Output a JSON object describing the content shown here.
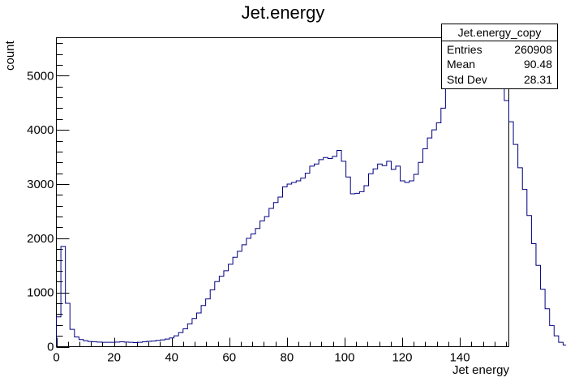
{
  "chart_data": {
    "type": "histogram",
    "title": "Jet.energy",
    "xlabel": "Jet energy",
    "ylabel": "count",
    "xlim": [
      0,
      157
    ],
    "ylim": [
      0,
      5700
    ],
    "xticks": [
      0,
      20,
      40,
      60,
      80,
      100,
      120,
      140
    ],
    "xtick_labels": [
      "0",
      "20",
      "40",
      "60",
      "80",
      "100",
      "120",
      "140"
    ],
    "yticks": [
      0,
      1000,
      2000,
      3000,
      4000,
      5000
    ],
    "ytick_labels": [
      "0",
      "1000",
      "2000",
      "3000",
      "4000",
      "5000"
    ],
    "bin_width": 1.57,
    "series": [
      {
        "color": "#000080",
        "values": [
          550,
          1850,
          800,
          320,
          180,
          130,
          110,
          95,
          90,
          85,
          80,
          80,
          80,
          85,
          90,
          85,
          80,
          75,
          80,
          90,
          100,
          105,
          115,
          125,
          140,
          160,
          200,
          260,
          330,
          420,
          520,
          620,
          760,
          880,
          1050,
          1200,
          1300,
          1400,
          1520,
          1650,
          1760,
          1880,
          2000,
          2080,
          2180,
          2320,
          2400,
          2550,
          2660,
          2760,
          2950,
          3000,
          3030,
          3060,
          3110,
          3200,
          3330,
          3370,
          3450,
          3490,
          3470,
          3510,
          3620,
          3420,
          3130,
          2820,
          2830,
          2860,
          2970,
          3190,
          3280,
          3370,
          3340,
          3420,
          3270,
          3330,
          3060,
          3030,
          3060,
          3180,
          3400,
          3650,
          3850,
          4000,
          4130,
          4400,
          4850,
          4760,
          4760,
          4980,
          5260,
          5330,
          5270,
          5360,
          5420,
          5390,
          5340,
          5160,
          4880,
          4540,
          4150,
          3730,
          3300,
          2900,
          2420,
          1900,
          1500,
          1060,
          700,
          390,
          200,
          80,
          30,
          12,
          5,
          2,
          1
        ]
      }
    ]
  },
  "stats": {
    "name": "Jet.energy_copy",
    "rows": [
      {
        "label": "Entries",
        "value": "260908"
      },
      {
        "label": "Mean",
        "value": "90.48"
      },
      {
        "label": "Std Dev",
        "value": "28.31"
      }
    ]
  }
}
